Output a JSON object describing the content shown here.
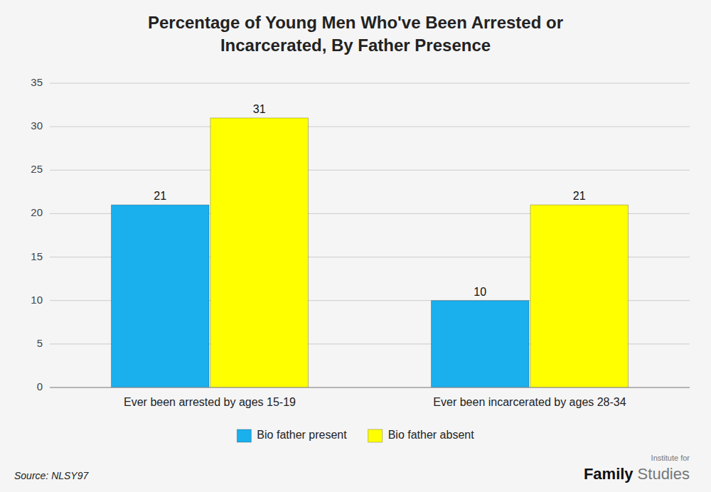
{
  "chart_data": {
    "type": "bar",
    "title": "Percentage of Young Men Who've Been Arrested or\nIncarcerated, By Father Presence",
    "categories": [
      "Ever been arrested by ages 15-19",
      "Ever been incarcerated by ages 28-34"
    ],
    "series": [
      {
        "name": "Bio father present",
        "color": "#1AAFED",
        "values": [
          21,
          10
        ]
      },
      {
        "name": "Bio father absent",
        "color": "#FFFF00",
        "values": [
          31,
          21
        ]
      }
    ],
    "ylim": [
      0,
      35
    ],
    "yticks": [
      0,
      5,
      10,
      15,
      20,
      25,
      30,
      35
    ],
    "grid": true,
    "legend": "bottom",
    "data_labels": true,
    "annotations": [
      "Source: NLSY97",
      "Institute for",
      "Family",
      "Studies"
    ]
  }
}
